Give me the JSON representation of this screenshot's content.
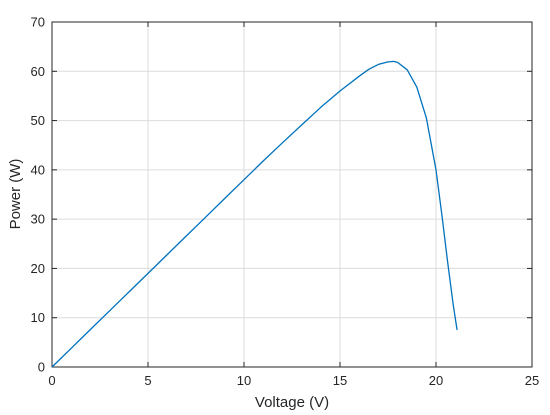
{
  "chart_data": {
    "type": "line",
    "title": "",
    "xlabel": "Voltage (V)",
    "ylabel": "Power (W)",
    "xlim": [
      0,
      25
    ],
    "ylim": [
      0,
      70
    ],
    "xticks": [
      0,
      5,
      10,
      15,
      20,
      25
    ],
    "yticks": [
      0,
      10,
      20,
      30,
      40,
      50,
      60,
      70
    ],
    "grid": true,
    "legend": "none",
    "line_color": "#0072BD",
    "series": [
      {
        "x": [
          0,
          1,
          2,
          3,
          4,
          5,
          6,
          7,
          8,
          9,
          10,
          11,
          12,
          13,
          14,
          15,
          16,
          16.5,
          17,
          17.5,
          17.8,
          18,
          18.5,
          19,
          19.5,
          20,
          20.3,
          20.6,
          20.9,
          21.1
        ],
        "y": [
          0,
          3.8,
          7.6,
          11.4,
          15.2,
          19.0,
          22.8,
          26.6,
          30.4,
          34.2,
          38.0,
          41.8,
          45.5,
          49.1,
          52.7,
          56.0,
          59.0,
          60.4,
          61.4,
          61.9,
          62.0,
          61.8,
          60.3,
          56.8,
          50.5,
          40.0,
          31.0,
          21.5,
          12.5,
          7.5
        ]
      }
    ]
  }
}
